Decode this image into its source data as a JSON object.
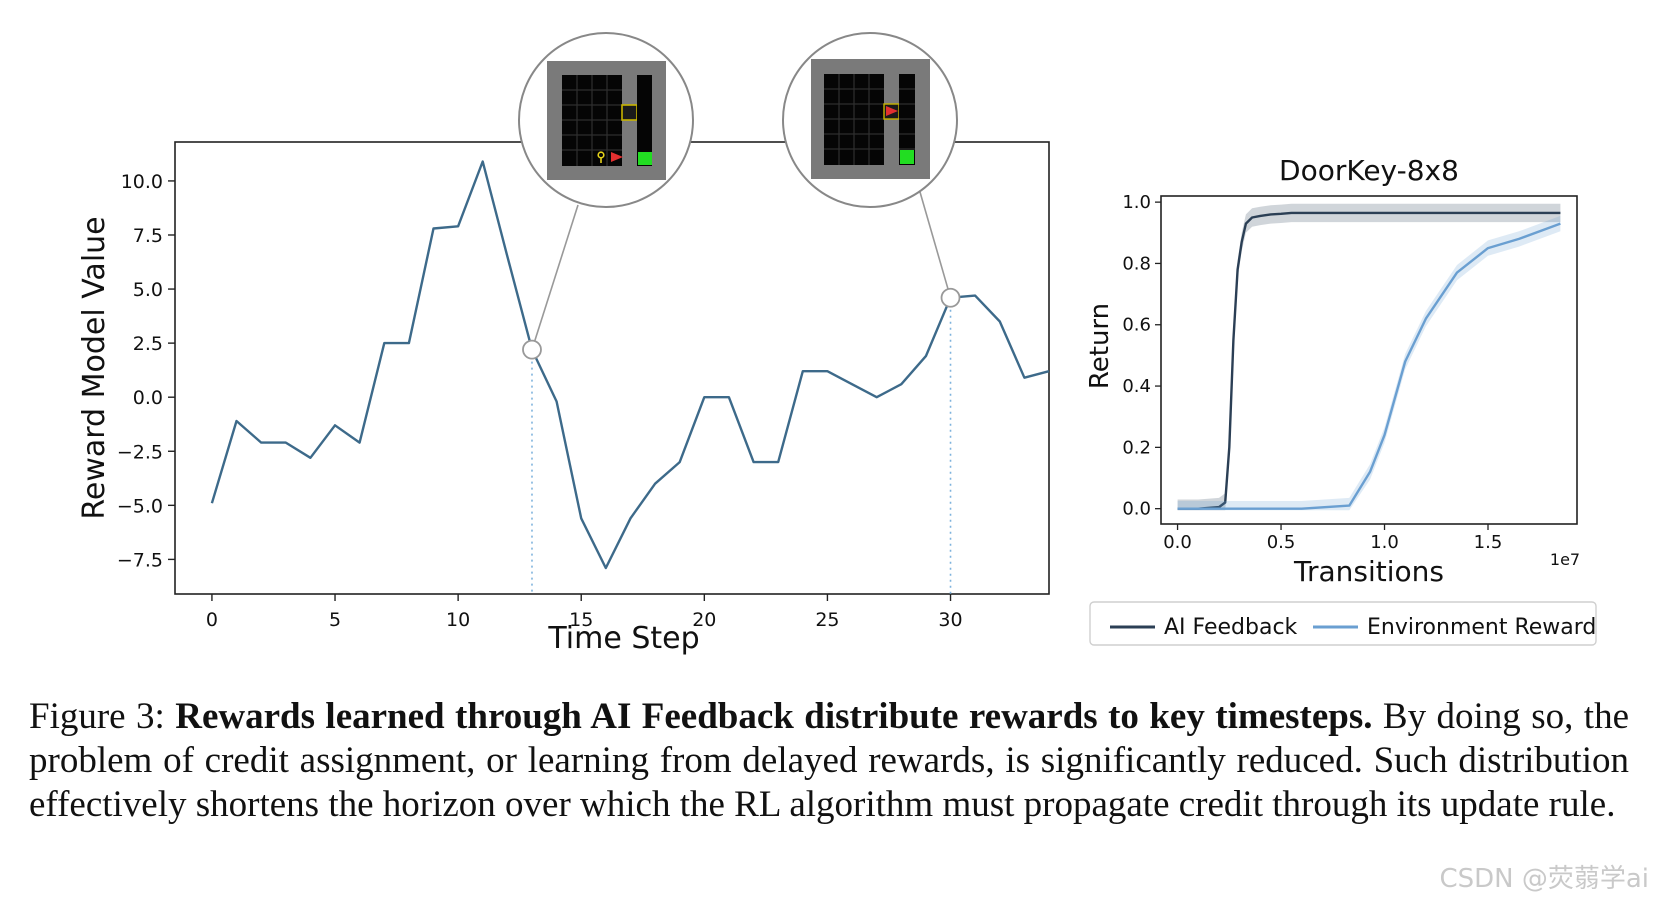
{
  "chart_data": [
    {
      "type": "line",
      "xlabel": "Time Step",
      "ylabel": "Reward Model Value",
      "xlim": [
        -1.5,
        34
      ],
      "ylim": [
        -9.1,
        11.8
      ],
      "x_ticks": [
        0,
        5,
        10,
        15,
        20,
        25,
        30
      ],
      "x_tick_labels": [
        "0",
        "5",
        "10",
        "15",
        "20",
        "25",
        "30"
      ],
      "y_ticks": [
        10,
        7.5,
        5,
        2.5,
        0,
        -2.5,
        -5,
        -7.5
      ],
      "y_tick_labels": [
        "10.0",
        "7.5",
        "5.0",
        "2.5",
        "0.0",
        "−2.5",
        "−5.0",
        "−7.5"
      ],
      "series": [
        {
          "name": "reward",
          "color": "#3d6a8a",
          "x": [
            0,
            1,
            2,
            3,
            4,
            5,
            6,
            7,
            8,
            9,
            10,
            11,
            12,
            13,
            14,
            15,
            16,
            17,
            18,
            19,
            20,
            21,
            22,
            23,
            24,
            25,
            26,
            27,
            28,
            29,
            30,
            31,
            32,
            33,
            34
          ],
          "values": [
            -4.9,
            -1.1,
            -2.1,
            -2.1,
            -2.8,
            -1.3,
            -2.1,
            2.5,
            2.5,
            7.8,
            7.9,
            10.9,
            6.5,
            2.2,
            -0.2,
            -5.6,
            -7.9,
            -5.6,
            -4.0,
            -3.0,
            0.0,
            0.0,
            -3.0,
            -3.0,
            1.2,
            1.2,
            0.6,
            0.0,
            0.6,
            1.9,
            4.6,
            4.7,
            3.5,
            0.9,
            1.2
          ]
        }
      ],
      "highlight_points": [
        {
          "x": 13,
          "y": 2.2
        },
        {
          "x": 30,
          "y": 4.6
        }
      ],
      "insets": [
        {
          "name": "key-pickup-state",
          "x": 13
        },
        {
          "name": "door-open-state",
          "x": 30
        }
      ]
    },
    {
      "type": "line",
      "title": "DoorKey-8x8",
      "xlabel": "Transitions",
      "ylabel": "Return",
      "x_scale_label": "1e7",
      "xlim": [
        -0.08,
        1.93
      ],
      "ylim": [
        -0.05,
        1.02
      ],
      "x_ticks": [
        0,
        0.5,
        1.0,
        1.5
      ],
      "x_tick_labels": [
        "0.0",
        "0.5",
        "1.0",
        "1.5"
      ],
      "y_ticks": [
        0,
        0.2,
        0.4,
        0.6,
        0.8,
        1.0
      ],
      "y_tick_labels": [
        "0.0",
        "0.2",
        "0.4",
        "0.6",
        "0.8",
        "1.0"
      ],
      "series": [
        {
          "name": "AI Feedback",
          "color": "#2b3f55",
          "x": [
            0,
            0.1,
            0.2,
            0.23,
            0.25,
            0.27,
            0.29,
            0.31,
            0.33,
            0.36,
            0.4,
            0.45,
            0.5,
            0.55,
            0.7,
            1.0,
            1.5,
            1.85
          ],
          "values": [
            0,
            0,
            0.005,
            0.02,
            0.2,
            0.55,
            0.78,
            0.87,
            0.93,
            0.95,
            0.955,
            0.96,
            0.962,
            0.965,
            0.965,
            0.965,
            0.965,
            0.965
          ],
          "band": 0.03
        },
        {
          "name": "Environment Reward",
          "color": "#6a9fd1",
          "x": [
            0,
            0.3,
            0.6,
            0.83,
            0.93,
            1.0,
            1.1,
            1.2,
            1.35,
            1.5,
            1.65,
            1.85
          ],
          "values": [
            0,
            0,
            0,
            0.01,
            0.12,
            0.24,
            0.48,
            0.62,
            0.77,
            0.85,
            0.88,
            0.93
          ],
          "band": 0.025
        }
      ],
      "legend": [
        "AI Feedback",
        "Environment Reward"
      ],
      "legend_position": "bottom"
    }
  ],
  "caption": {
    "label": "Figure 3:",
    "bold": "Rewards learned through AI Feedback distribute rewards to key timesteps.",
    "text": "By doing so, the problem of credit assignment, or learning from delayed rewards, is significantly reduced. Such distribution effectively shortens the horizon over which the RL algorithm must propagate credit through its update rule."
  },
  "watermark": "CSDN @荧蒻学ai"
}
